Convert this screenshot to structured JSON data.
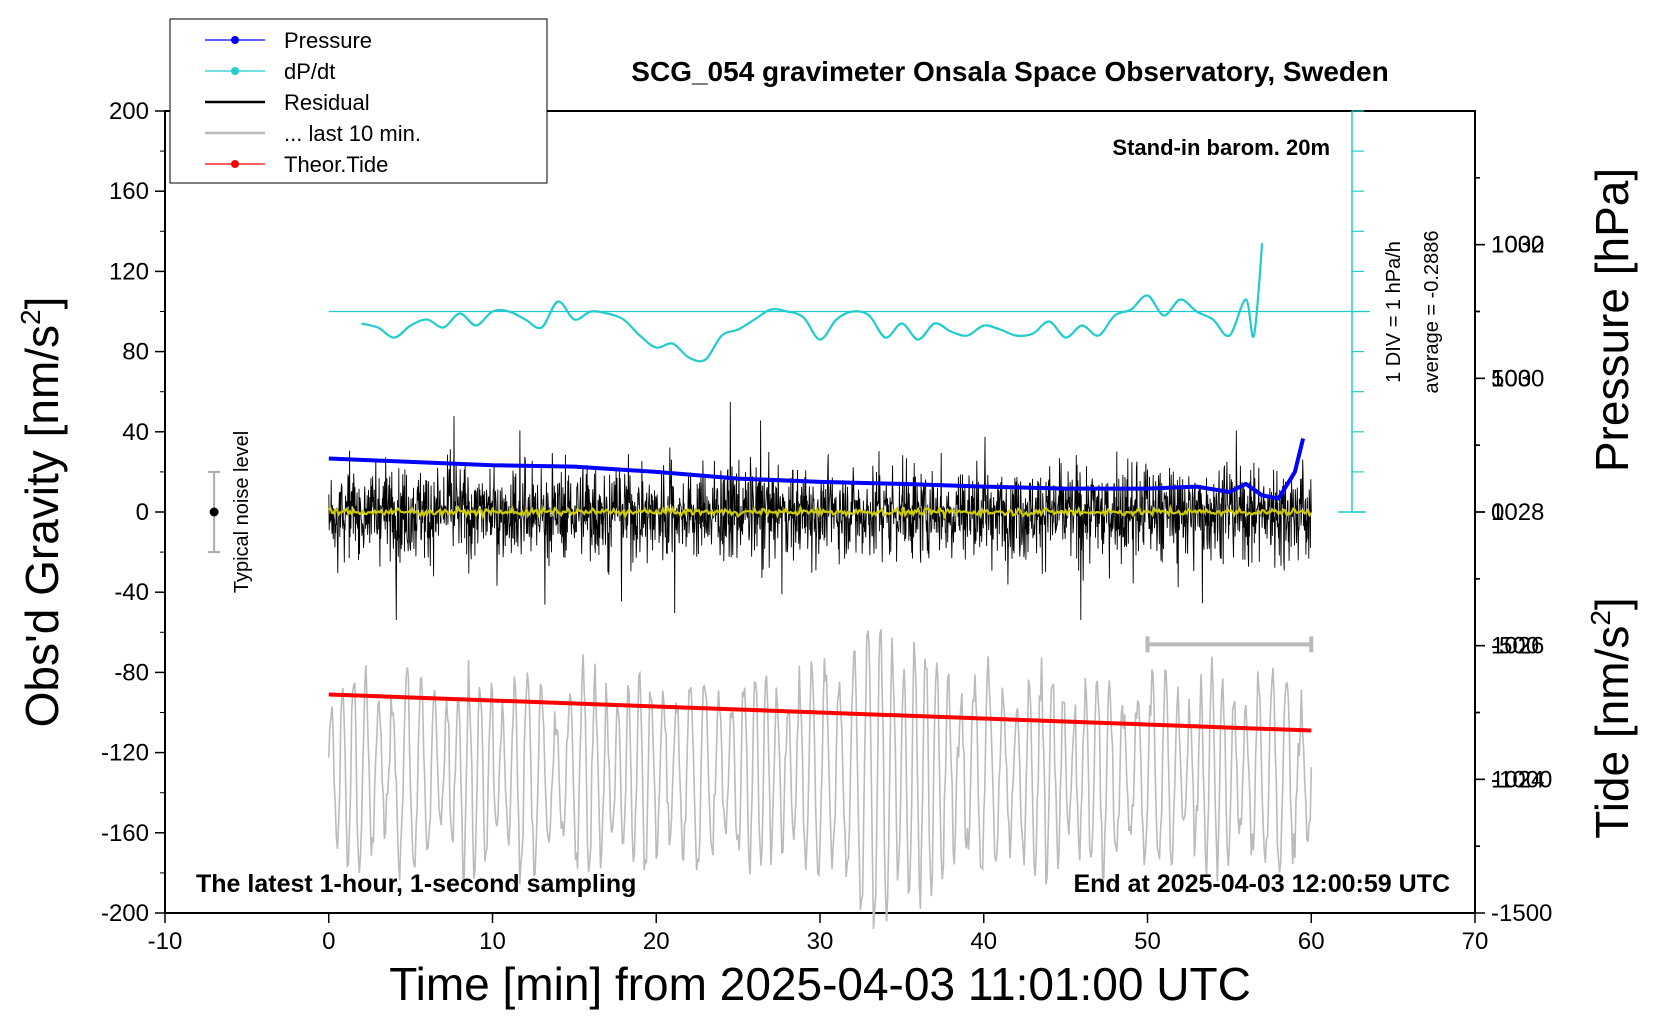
{
  "chart_data": {
    "type": "line",
    "title": "SCG_054 gravimeter Onsala Space Observatory, Sweden",
    "xlabel": "Time [min] from 2025-04-03 11:01:00 UTC",
    "ylabel_left_text": "Obs'd Gravity [nm/s",
    "ylabel_left_sup": "2",
    "ylabel_left_close": "]",
    "ylabel_right_top": "Pressure [hPa]",
    "ylabel_right_bottom_text": "Tide [nm/s",
    "ylabel_right_bottom_sup": "2",
    "ylabel_right_bottom_close": "]",
    "xlim": [
      -10,
      70
    ],
    "ylim": [
      -200,
      200
    ],
    "pressure_ylim": [
      1022,
      1034
    ],
    "tide_ylim": [
      -1500,
      1500
    ],
    "x_ticks": [
      "-10",
      "0",
      "10",
      "20",
      "30",
      "40",
      "50",
      "60",
      "70"
    ],
    "y_ticks": [
      "-200",
      "-160",
      "-120",
      "-80",
      "-40",
      "0",
      "40",
      "80",
      "120",
      "160",
      "200"
    ],
    "pressure_ticks": [
      "1024",
      "1026",
      "1028",
      "1030",
      "1032"
    ],
    "tide_ticks": [
      "-1500",
      "-1000",
      "-500",
      "0",
      "500",
      "1000"
    ],
    "legend": {
      "placement": "top-left",
      "entries": [
        {
          "label": "Pressure",
          "color": "#0000ff",
          "marker": true
        },
        {
          "label": "dP/dt",
          "color": "#22cccc",
          "marker": true
        },
        {
          "label": "Residual",
          "color": "#000000",
          "marker": false
        },
        {
          "label": "... last 10 min.",
          "color": "#bbbbbb",
          "marker": false
        },
        {
          "label": "Theor.Tide",
          "color": "#ff0000",
          "marker": true
        }
      ]
    },
    "annotations": {
      "barometer": "Stand-in barom. 20m",
      "div_scale": "1 DIV = 1 hPa/h",
      "average": "average = -0.2886",
      "noise": "Typical noise level",
      "sampling": "The latest 1-hour, 1-second sampling",
      "end_time": "End at 2025-04-03 12:00:59 UTC"
    },
    "noise_level": {
      "x": -7,
      "center": 0,
      "range": [
        -20,
        20
      ]
    },
    "last10_bar": {
      "x_range": [
        50,
        60
      ],
      "y": -66
    },
    "dpdt_zero_y": 100,
    "series": {
      "pressure": {
        "color": "#0000ff",
        "x": [
          0,
          5,
          10,
          15,
          20,
          25,
          30,
          35,
          40,
          45,
          50,
          53,
          55,
          56,
          57,
          58,
          59,
          59.5
        ],
        "y": [
          1028.8,
          1028.75,
          1028.7,
          1028.68,
          1028.6,
          1028.5,
          1028.45,
          1028.42,
          1028.38,
          1028.35,
          1028.35,
          1028.38,
          1028.3,
          1028.42,
          1028.25,
          1028.2,
          1028.6,
          1029.1
        ]
      },
      "dpdt": {
        "color": "#22cccc",
        "x": [
          2,
          3,
          4,
          5,
          6,
          7,
          8,
          9,
          10,
          11,
          12,
          13,
          14,
          15,
          16,
          17,
          18,
          19,
          20,
          21,
          22,
          23,
          24,
          25,
          26,
          27,
          28,
          29,
          30,
          31,
          32,
          33,
          34,
          35,
          36,
          37,
          38,
          39,
          40,
          41,
          42,
          43,
          44,
          45,
          46,
          47,
          48,
          49,
          50,
          51,
          52,
          53,
          54,
          55,
          56,
          56.5,
          57
        ],
        "y": [
          94,
          92,
          87,
          93,
          96,
          92,
          99,
          93,
          100,
          100,
          96,
          92,
          105,
          96,
          100,
          99,
          96,
          88,
          82,
          84,
          77,
          76,
          88,
          91,
          96,
          101,
          100,
          97,
          86,
          96,
          100,
          98,
          87,
          94,
          86,
          94,
          90,
          88,
          93,
          91,
          88,
          89,
          95,
          87,
          93,
          88,
          98,
          101,
          108,
          98,
          106,
          100,
          96,
          88,
          106,
          88,
          134
        ]
      },
      "residual": {
        "color": "#000000",
        "x_range": [
          0,
          60
        ],
        "amplitude": 20,
        "envelope_max": 80
      },
      "residual_mean": {
        "color": "#cccc00",
        "x_range": [
          0,
          60
        ],
        "y": 0
      },
      "last10": {
        "color": "#bbbbbb",
        "x_range": [
          0,
          60
        ],
        "center": -130,
        "amplitude": 50
      },
      "theoretical_tide": {
        "color": "#ff0000",
        "x": [
          0,
          60
        ],
        "y": [
          -91,
          -109
        ]
      }
    }
  }
}
